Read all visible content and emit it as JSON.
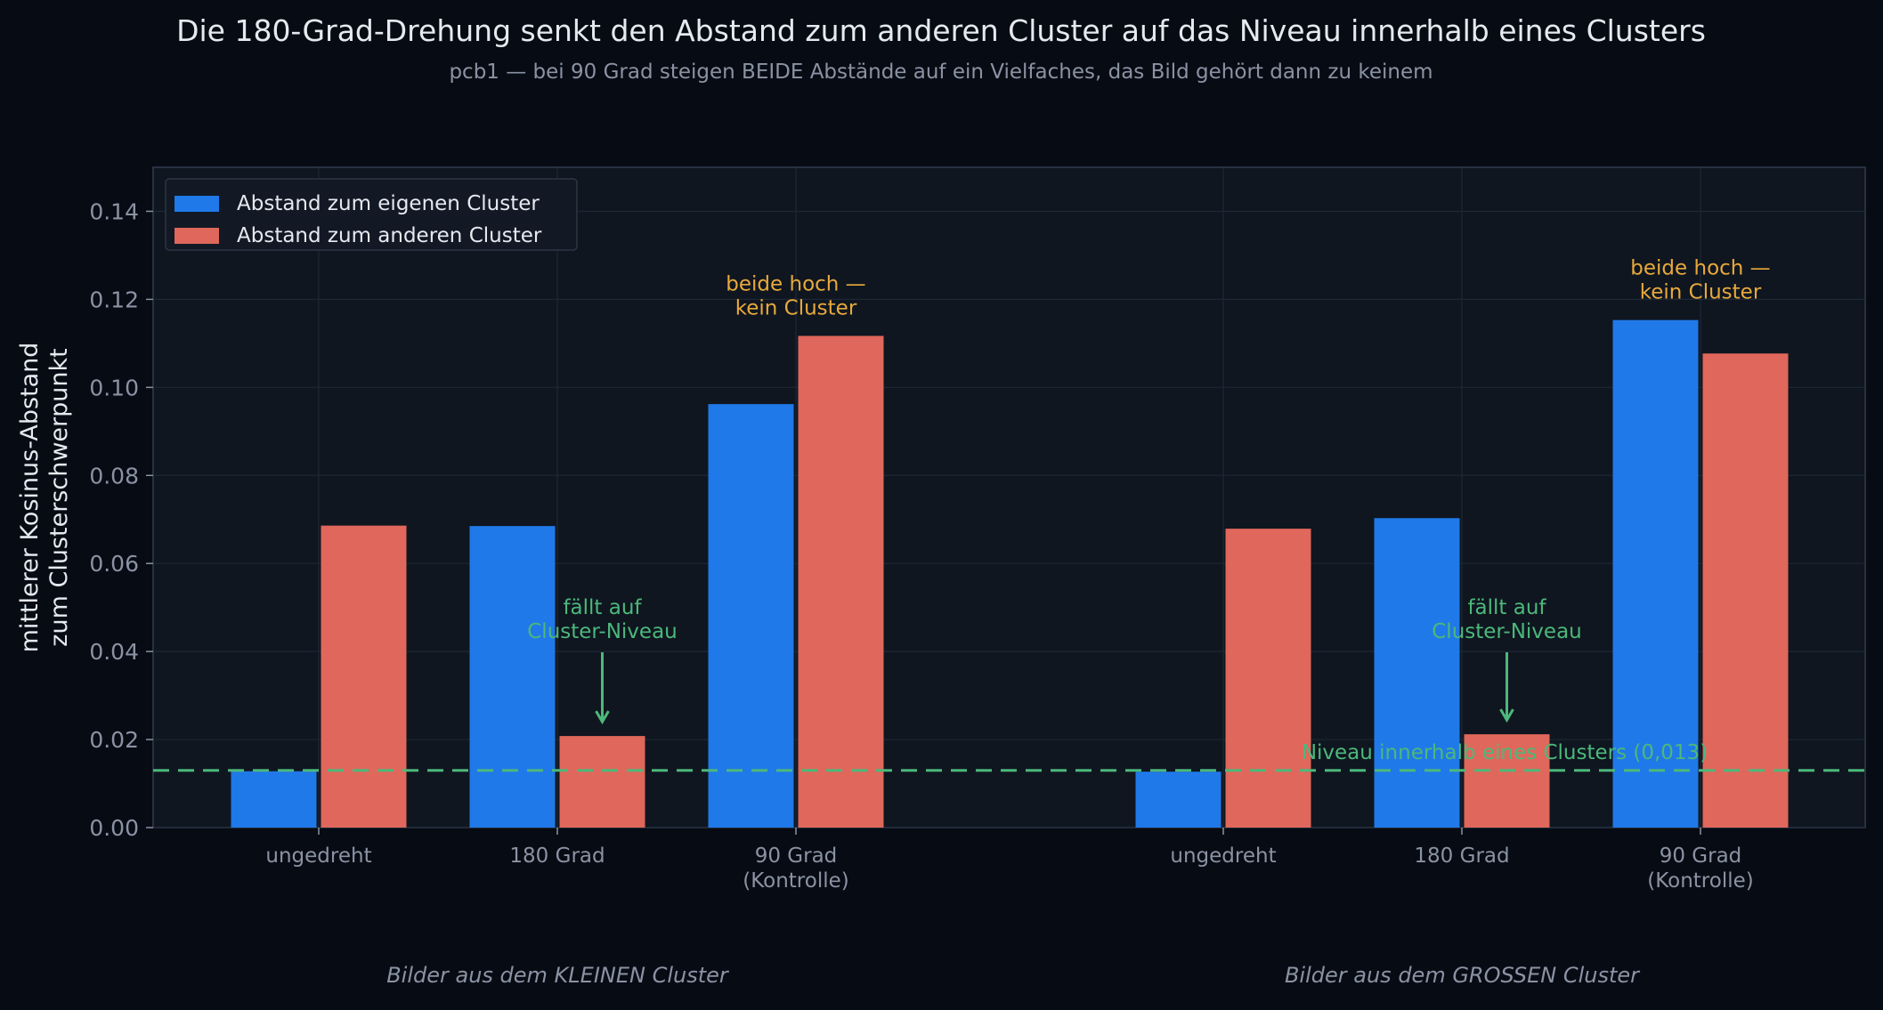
{
  "chart_data": {
    "type": "bar",
    "title": "Die 180-Grad-Drehung senkt den Abstand zum anderen Cluster auf das Niveau innerhalb eines Clusters",
    "subtitle": "pcb1 — bei 90 Grad steigen BEIDE Abstände auf ein Vielfaches, das Bild gehört dann zu keinem",
    "ylabel": [
      "mittlerer Kosinus-Abstand",
      "zum Clusterschwerpunkt"
    ],
    "xlabel": "",
    "ylim": [
      0,
      0.15
    ],
    "yticks": [
      0.0,
      0.02,
      0.04,
      0.06,
      0.08,
      0.1,
      0.12,
      0.14
    ],
    "ytick_labels": [
      "0.00",
      "0.02",
      "0.04",
      "0.06",
      "0.08",
      "0.10",
      "0.12",
      "0.14"
    ],
    "grid": true,
    "legend_position": "top-left",
    "colors": {
      "own": "#2079e8",
      "other": "#e0675b",
      "reference": "#4cb87a",
      "annotation_warn": "#e8a93c",
      "background": "#070b14",
      "plot_background": "#0f1620",
      "text": "#e6e9ef",
      "muted": "#8a93a3"
    },
    "series": [
      {
        "name": "Abstand zum eigenen Cluster",
        "color": "#2079e8"
      },
      {
        "name": "Abstand zum anderen Cluster",
        "color": "#e0675b"
      }
    ],
    "groups": [
      {
        "label": "Bilder aus dem KLEINEN Cluster",
        "categories": [
          {
            "label": [
              "ungedreht"
            ],
            "own": 0.0128,
            "other": 0.0686
          },
          {
            "label": [
              "180 Grad"
            ],
            "own": 0.0685,
            "other": 0.0208
          },
          {
            "label": [
              "90 Grad",
              "(Kontrolle)"
            ],
            "own": 0.0962,
            "other": 0.1117
          }
        ]
      },
      {
        "label": "Bilder aus dem GROSSEN Cluster",
        "categories": [
          {
            "label": [
              "ungedreht"
            ],
            "own": 0.0127,
            "other": 0.0679
          },
          {
            "label": [
              "180 Grad"
            ],
            "own": 0.0703,
            "other": 0.0212
          },
          {
            "label": [
              "90 Grad",
              "(Kontrolle)"
            ],
            "own": 0.1153,
            "other": 0.1077
          }
        ]
      }
    ],
    "reference_line": {
      "value": 0.013,
      "label": "Niveau innerhalb eines Clusters (0,013)"
    },
    "annotations": [
      {
        "group": 0,
        "category": 1,
        "kind": "arrow",
        "lines": [
          "fällt auf",
          "Cluster-Niveau"
        ]
      },
      {
        "group": 0,
        "category": 2,
        "kind": "text",
        "lines": [
          "beide hoch —",
          "kein Cluster"
        ]
      },
      {
        "group": 1,
        "category": 1,
        "kind": "arrow",
        "lines": [
          "fällt auf",
          "Cluster-Niveau"
        ]
      },
      {
        "group": 1,
        "category": 2,
        "kind": "text",
        "lines": [
          "beide hoch —",
          "kein Cluster"
        ]
      }
    ]
  }
}
